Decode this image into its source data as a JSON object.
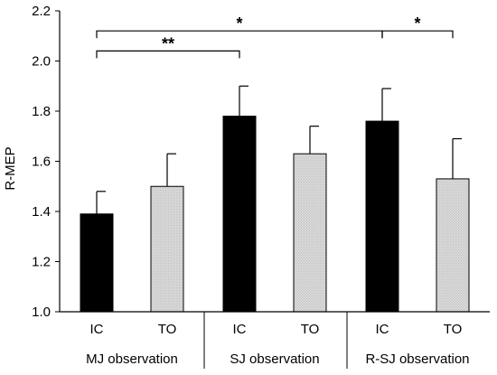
{
  "chart_data": {
    "type": "bar",
    "ylabel": "R-MEP",
    "xlabel": "",
    "title": "",
    "ylim": [
      1.0,
      2.2
    ],
    "yticks": [
      "1.0",
      "1.2",
      "1.4",
      "1.6",
      "1.8",
      "2.0",
      "2.2"
    ],
    "groups": [
      "MJ observation",
      "SJ observation",
      "R-SJ observation"
    ],
    "categories": [
      "IC",
      "TO",
      "IC",
      "TO",
      "IC",
      "TO"
    ],
    "values": [
      1.39,
      1.5,
      1.78,
      1.63,
      1.76,
      1.53
    ],
    "errors": [
      0.09,
      0.13,
      0.12,
      0.11,
      0.13,
      0.16
    ],
    "bar_colors": {
      "IC": "#000000",
      "TO": "#d9d9d9"
    },
    "grid": false,
    "significance": [
      {
        "from": 0,
        "to": 2,
        "label": "**",
        "y": 2.04
      },
      {
        "from": 0,
        "to": 4,
        "label": "*",
        "y": 2.12
      },
      {
        "from": 4,
        "to": 5,
        "label": "*",
        "y": 2.12
      }
    ]
  }
}
